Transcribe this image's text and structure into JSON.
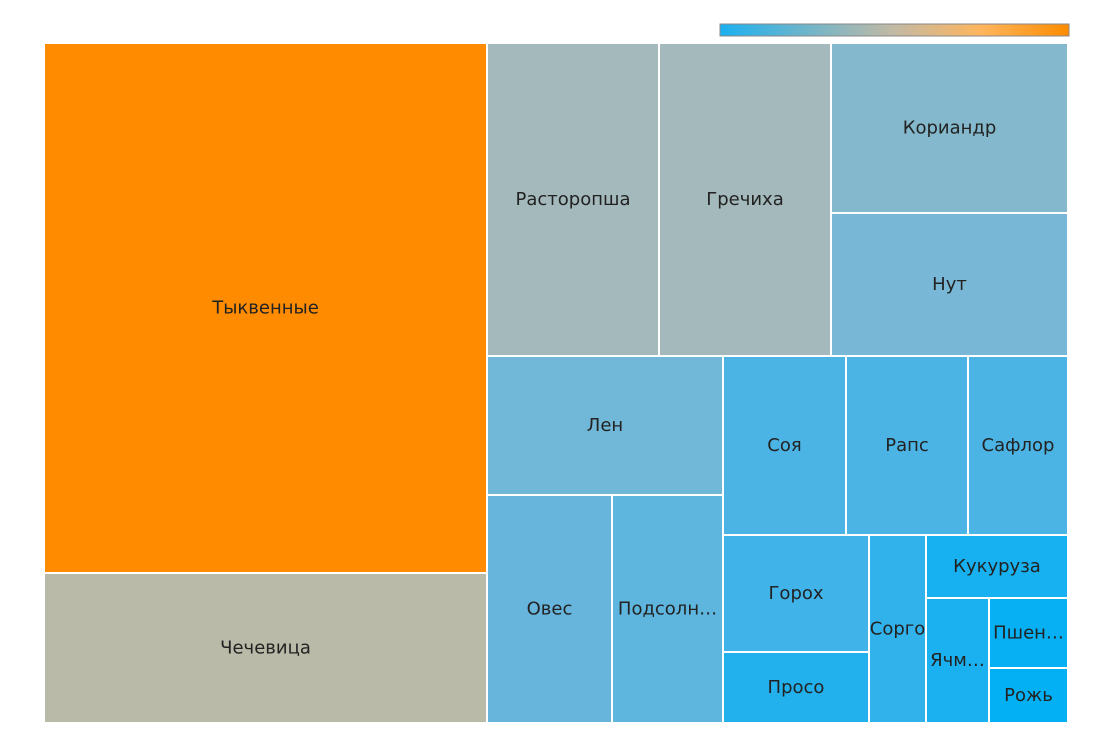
{
  "chart_data": {
    "type": "treemap",
    "title": "",
    "color_scale": {
      "low": "#1bb0f0",
      "mid": "#c3b9a4",
      "high": "#ff8c00"
    },
    "items": [
      {
        "name": "Тыквенные",
        "label": "Тыквенные",
        "color": "#ff8c00"
      },
      {
        "name": "Чечевица",
        "label": "Чечевица",
        "color": "#b9bba8"
      },
      {
        "name": "Расторопша",
        "label": "Расторопша",
        "color": "#a3b9bb"
      },
      {
        "name": "Гречиха",
        "label": "Гречиха",
        "color": "#a3b9bb"
      },
      {
        "name": "Кориандр",
        "label": "Кориандр",
        "color": "#84b8cc"
      },
      {
        "name": "Нут",
        "label": "Нут",
        "color": "#78b7d5"
      },
      {
        "name": "Лен",
        "label": "Лен",
        "color": "#71b7d8"
      },
      {
        "name": "Овес",
        "label": "Овес",
        "color": "#67b5dc"
      },
      {
        "name": "Подсолнечник",
        "label": "Подсолн…",
        "color": "#5eb5de"
      },
      {
        "name": "Соя",
        "label": "Соя",
        "color": "#4cb4e4"
      },
      {
        "name": "Рапс",
        "label": "Рапс",
        "color": "#4cb4e4"
      },
      {
        "name": "Сафлор",
        "label": "Сафлор",
        "color": "#4cb4e4"
      },
      {
        "name": "Горох",
        "label": "Горох",
        "color": "#40b3e8"
      },
      {
        "name": "Просо",
        "label": "Просо",
        "color": "#23b1ee"
      },
      {
        "name": "Сорго",
        "label": "Сорго",
        "color": "#32b2eb"
      },
      {
        "name": "Кукуруза",
        "label": "Кукуруза",
        "color": "#17b1f1"
      },
      {
        "name": "Ячмень",
        "label": "Ячм…",
        "color": "#1bb1f0"
      },
      {
        "name": "Пшеница",
        "label": "Пшен…",
        "color": "#06b0f3"
      },
      {
        "name": "Рожь",
        "label": "Рожь",
        "color": "#03b0f4"
      }
    ]
  }
}
